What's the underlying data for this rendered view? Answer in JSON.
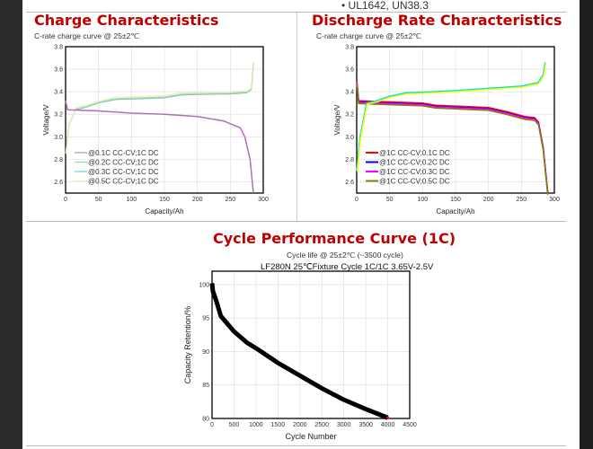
{
  "top_note": "• UL1642, UN38.3",
  "colors": {
    "title": "#c00000"
  },
  "chart_data": [
    {
      "type": "line",
      "title": "Charge Characteristics",
      "subtitle": "C-rate charge curve @ 25±2℃",
      "xlabel": "Capacity/Ah",
      "ylabel": "Voltage/V",
      "xlim": [
        0,
        300
      ],
      "ylim": [
        2.5,
        3.8
      ],
      "xticks": [
        0,
        50,
        100,
        150,
        200,
        250,
        300
      ],
      "yticks": [
        2.6,
        2.8,
        3.0,
        3.2,
        3.4,
        3.6,
        3.8
      ],
      "grid": true,
      "legend": "bottom-left",
      "series": [
        {
          "name": "@0.1C CC-CV;1C DC",
          "color": "#a0a0a0",
          "dy": 0
        },
        {
          "name": "@0.2C CC-CV;1C DC",
          "color": "#90e090",
          "dy": 0.005
        },
        {
          "name": "@0.3C CC-CV;1C DC",
          "color": "#a0e8e8",
          "dy": 0.01
        },
        {
          "name": "@0.5C CC-CV;1C DC",
          "color": "#f0f0a0",
          "dy": 0.02
        }
      ],
      "charge": [
        [
          0,
          2.85
        ],
        [
          5,
          3.1
        ],
        [
          15,
          3.24
        ],
        [
          30,
          3.26
        ],
        [
          50,
          3.3
        ],
        [
          75,
          3.33
        ],
        [
          100,
          3.335
        ],
        [
          150,
          3.345
        ],
        [
          175,
          3.37
        ],
        [
          200,
          3.375
        ],
        [
          250,
          3.38
        ],
        [
          275,
          3.39
        ],
        [
          282,
          3.42
        ],
        [
          285,
          3.65
        ]
      ],
      "discharge": {
        "color": "#b070b8",
        "points": [
          [
            0,
            3.32
          ],
          [
            3,
            3.24
          ],
          [
            50,
            3.23
          ],
          [
            100,
            3.21
          ],
          [
            150,
            3.2
          ],
          [
            200,
            3.18
          ],
          [
            240,
            3.14
          ],
          [
            265,
            3.08
          ],
          [
            272,
            3.0
          ],
          [
            280,
            2.8
          ],
          [
            285,
            2.5
          ]
        ]
      }
    },
    {
      "type": "line",
      "title": "Discharge Rate Characteristics",
      "subtitle": "C-rate charge curve @ 25±2℃",
      "xlabel": "Capacity/Ah",
      "ylabel": "Voltage/V",
      "xlim": [
        0,
        300
      ],
      "ylim": [
        2.5,
        3.8
      ],
      "xticks": [
        0,
        50,
        100,
        150,
        200,
        250,
        300
      ],
      "yticks": [
        2.6,
        2.8,
        3.0,
        3.2,
        3.4,
        3.6,
        3.8
      ],
      "grid": true,
      "legend": "bottom-left",
      "series": [
        {
          "name": "@1C CC-CV;0.1C DC",
          "color": "#ff0000",
          "dy": 0.01
        },
        {
          "name": "@1C CC-CV;0.2C DC",
          "color": "#0000ff",
          "dy": 0
        },
        {
          "name": "@1C CC-CV;0.3C DC",
          "color": "#ff00ff",
          "dy": -0.005
        },
        {
          "name": "@1C CC-CV;0.5C DC",
          "color": "#808000",
          "dy": -0.015
        }
      ],
      "charge": {
        "colors": [
          "#00e0e0",
          "#ffff00"
        ],
        "points": [
          [
            0,
            2.7
          ],
          [
            5,
            3.0
          ],
          [
            15,
            3.3
          ],
          [
            30,
            3.32
          ],
          [
            50,
            3.36
          ],
          [
            75,
            3.39
          ],
          [
            100,
            3.395
          ],
          [
            150,
            3.41
          ],
          [
            200,
            3.43
          ],
          [
            250,
            3.45
          ],
          [
            275,
            3.48
          ],
          [
            283,
            3.55
          ],
          [
            286,
            3.66
          ]
        ]
      },
      "discharge": [
        [
          0,
          3.5
        ],
        [
          3,
          3.31
        ],
        [
          50,
          3.3
        ],
        [
          100,
          3.29
        ],
        [
          120,
          3.27
        ],
        [
          200,
          3.25
        ],
        [
          230,
          3.21
        ],
        [
          255,
          3.17
        ],
        [
          270,
          3.16
        ],
        [
          276,
          3.12
        ],
        [
          283,
          2.9
        ],
        [
          290,
          2.5
        ]
      ]
    },
    {
      "type": "line",
      "title": "Cycle Performance Curve (1C)",
      "subtitle": "Cycle life @ 25±2℃ (~3500 cycle)",
      "plot_title": "LF280N 25℃Fixture Cycle 1C/1C 3.65V-2.5V",
      "xlabel": "Cycle Number",
      "ylabel": "Capacity Retention/%",
      "xlim": [
        0,
        4500
      ],
      "ylim": [
        80,
        102
      ],
      "xticks": [
        0,
        500,
        1000,
        1500,
        2000,
        2500,
        3000,
        3500,
        4000,
        4500
      ],
      "yticks": [
        80,
        85,
        90,
        95,
        100
      ],
      "grid": true,
      "points": [
        [
          0,
          100.2
        ],
        [
          20,
          99
        ],
        [
          100,
          97.5
        ],
        [
          200,
          95.3
        ],
        [
          500,
          93
        ],
        [
          800,
          91.3
        ],
        [
          1000,
          90.5
        ],
        [
          1500,
          88.3
        ],
        [
          2000,
          86.4
        ],
        [
          2500,
          84.5
        ],
        [
          3000,
          82.8
        ],
        [
          3500,
          81.4
        ],
        [
          4000,
          80.1
        ]
      ]
    }
  ]
}
